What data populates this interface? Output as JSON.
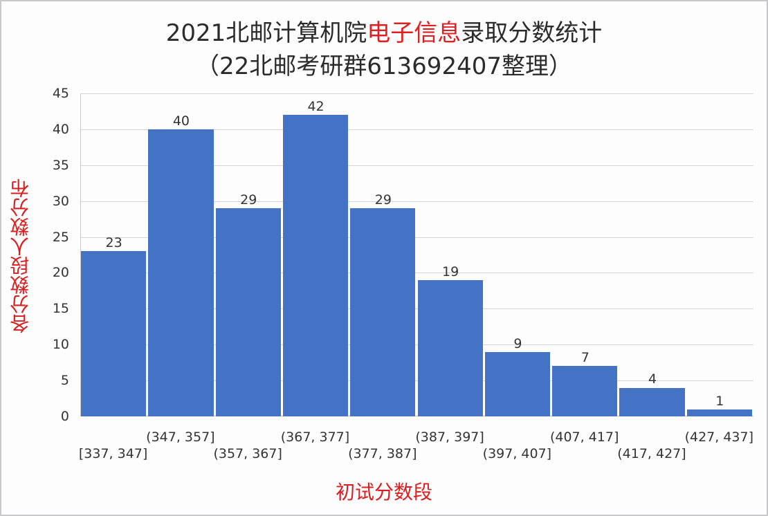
{
  "title": {
    "line1_prefix": "2021北邮计算机院",
    "line1_highlight": "电子信息",
    "line1_suffix": "录取分数统计",
    "line2": "（22北邮考研群613692407整理）",
    "highlight_color": "#e02020"
  },
  "chart_data": {
    "type": "bar",
    "title": "2021北邮计算机院电子信息录取分数统计（22北邮考研群613692407整理）",
    "xlabel": "初试分数段",
    "ylabel": "各分数段人数分布",
    "categories": [
      "[337, 347]",
      "(347, 357]",
      "(357, 367]",
      "(367, 377]",
      "(377, 387]",
      "(387, 397]",
      "(397, 407]",
      "(407, 417]",
      "(417, 427]",
      "(427, 437]"
    ],
    "values": [
      23,
      40,
      29,
      42,
      29,
      19,
      9,
      7,
      4,
      1
    ],
    "ylim": [
      0,
      45
    ],
    "yticks": [
      "0",
      "5",
      "10",
      "15",
      "20",
      "25",
      "30",
      "35",
      "40",
      "45"
    ],
    "grid": true,
    "legend": null,
    "bar_color": "#4472c4",
    "data_labels": [
      "23",
      "40",
      "29",
      "42",
      "29",
      "19",
      "9",
      "7",
      "4",
      "1"
    ]
  },
  "axes": {
    "xlabel": "初试分数段",
    "ylabel": "各分数段人数分布",
    "label_color": "#d81e1e"
  }
}
